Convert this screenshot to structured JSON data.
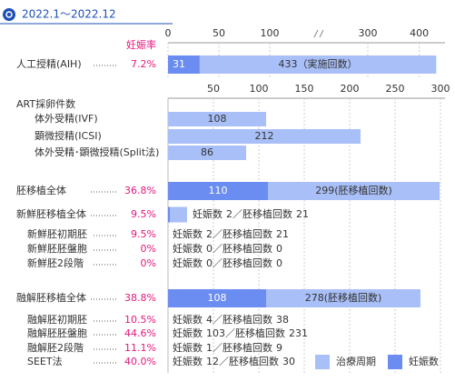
{
  "header": {
    "period": "2022.1〜2022.12"
  },
  "legend": [
    {
      "name": "治療周期",
      "color": "#a9bff7"
    },
    {
      "name": "妊娠数",
      "color": "#6b8cf0"
    }
  ],
  "chart_data": [
    {
      "type": "bar",
      "rate_header": "妊娠率",
      "categories": [
        "人工授精(AIH)"
      ],
      "rates": [
        7.2
      ],
      "rate_labels": [
        "7.2%"
      ],
      "series": [
        {
          "color": "#6b8cf0",
          "values": [
            31
          ]
        },
        {
          "color": "#a9bff7",
          "values": [
            433
          ],
          "value_labels": [
            "433（実施回数）"
          ]
        }
      ],
      "xlim": [
        0,
        450
      ],
      "xticks": [
        0,
        50,
        100,
        300,
        400
      ],
      "axis_break": [
        100,
        300
      ]
    },
    {
      "type": "bar",
      "title": "ART採卵件数",
      "categories": [
        "体外受精(IVF)",
        "顕微授精(ICSI)",
        "体外受精･顕微授精(Split法)"
      ],
      "series": [
        {
          "color": "#a9bff7",
          "values": [
            108,
            212,
            86
          ]
        }
      ],
      "xlim": [
        0,
        300
      ],
      "xticks": [
        50,
        100,
        150,
        200,
        250,
        300
      ],
      "grid": true
    },
    {
      "type": "bar",
      "separator": "／",
      "categories": [
        "胚移植全体",
        "新鮮胚移植全体",
        "新鮮胚初期胚",
        "新鮮胚胚盤胞",
        "新鮮胚2段階",
        "融解胚移植全体",
        "融解胚初期胚",
        "融解胚胚盤胞",
        "融解胚2段階",
        "SEET法"
      ],
      "level": [
        0,
        0,
        1,
        1,
        1,
        0,
        1,
        1,
        1,
        1
      ],
      "display": [
        "bar",
        "bar_text",
        "text",
        "text",
        "text",
        "bar",
        "text",
        "text",
        "text",
        "text"
      ],
      "rates": [
        36.8,
        9.5,
        9.5,
        0,
        0,
        38.8,
        10.5,
        44.6,
        11.1,
        40.0
      ],
      "rate_labels": [
        "36.8%",
        "9.5%",
        "9.5%",
        "0%",
        "0%",
        "38.8%",
        "10.5%",
        "44.6%",
        "11.1%",
        "40.0%"
      ],
      "series": [
        {
          "name": "妊娠数",
          "color": "#6b8cf0",
          "values": [
            110,
            2,
            2,
            0,
            0,
            108,
            4,
            103,
            1,
            12
          ]
        },
        {
          "name": "胚移植回数",
          "color": "#a9bff7",
          "values": [
            299,
            21,
            21,
            0,
            0,
            278,
            38,
            231,
            9,
            30
          ],
          "value_labels": [
            "299(胚移植回数)",
            null,
            null,
            null,
            null,
            "278(胚移植回数)",
            null,
            null,
            null,
            null
          ]
        }
      ],
      "xlim": [
        0,
        300
      ]
    }
  ]
}
